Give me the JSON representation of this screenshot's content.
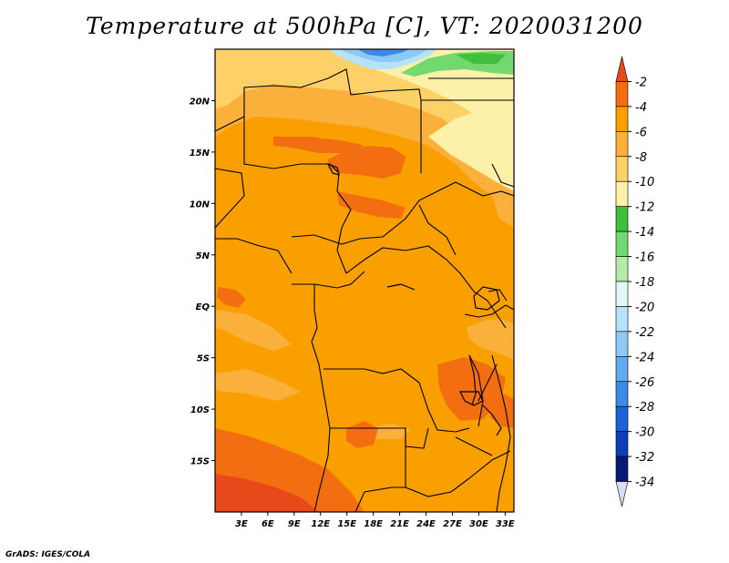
{
  "title": "Temperature at 500hPa [C], VT: 2020031200",
  "credit": "GrADS: IGES/COLA",
  "axes": {
    "lon_labels": [
      "3E",
      "6E",
      "9E",
      "12E",
      "15E",
      "18E",
      "21E",
      "24E",
      "27E",
      "30E",
      "33E"
    ],
    "lon_values": [
      3,
      6,
      9,
      12,
      15,
      18,
      21,
      24,
      27,
      30,
      33
    ],
    "lat_labels": [
      "20N",
      "15N",
      "10N",
      "5N",
      "EQ",
      "5S",
      "10S",
      "15S"
    ],
    "lat_values": [
      20,
      15,
      10,
      5,
      0,
      -5,
      -10,
      -15
    ],
    "lon_range": [
      0,
      34
    ],
    "lat_range": [
      -20,
      25
    ]
  },
  "colorbar": {
    "labels": [
      "-2",
      "-4",
      "-6",
      "-8",
      "-10",
      "-12",
      "-14",
      "-16",
      "-18",
      "-20",
      "-22",
      "-24",
      "-26",
      "-28",
      "-30",
      "-32",
      "-34"
    ],
    "colors": [
      "#e8481a",
      "#f26e10",
      "#f9a000",
      "#fbb03c",
      "#fdd168",
      "#fdf0a8",
      "#3fbf3a",
      "#74d870",
      "#b2eca8",
      "#e2f8f6",
      "#b6e2fa",
      "#8ccaf5",
      "#60acee",
      "#3a8ae6",
      "#1c64d6",
      "#0c3eb6",
      "#081a74",
      "#d8dcf6"
    ]
  },
  "map": {
    "background": "#f9a000",
    "colors": {
      "dark_orange": "#f26e10",
      "red_orange": "#e8481a",
      "light_orange": "#fbb03c",
      "yellow": "#fdd168",
      "pale_yellow": "#fdf0a8",
      "green": "#3fbf3a",
      "light_green": "#74d870",
      "blue": "#3a8ae6",
      "light_blue": "#8ccaf5",
      "cyan": "#b6e2fa",
      "border": "#000000"
    }
  }
}
